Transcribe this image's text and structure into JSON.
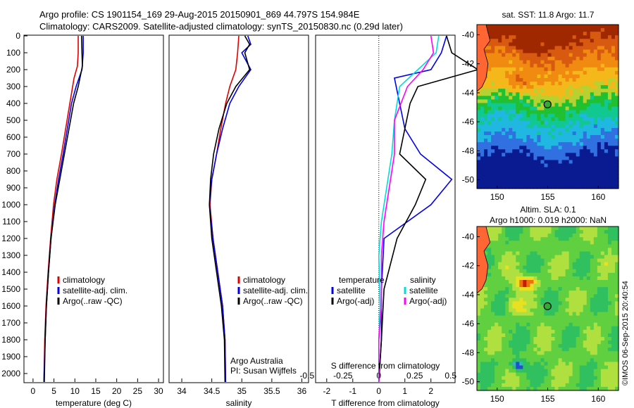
{
  "header": {
    "line1": "Argo profile: CS 1901154_169 29-Aug-2015 20150901_869 44.797S 154.984E",
    "line2": "Climatology: CARS2009. Satellite-adjusted climatology: synTS_20150830.nc (0.29d later)"
  },
  "credit": {
    "line1": "Argo Australia",
    "line2": "PI: Susan Wijffels"
  },
  "stamp": "©IMOS 06-Sep-2015 20:40:54",
  "colors": {
    "climatology": "#e00000",
    "satellite": "#0000ee",
    "argo": "#000000",
    "sal_sat": "#00dddd",
    "sal_argo": "#ff00ff"
  },
  "chart_data": [
    {
      "type": "line",
      "xlabel": "temperature (deg C)",
      "xlim": [
        -2,
        31
      ],
      "xticks": [
        0,
        5,
        10,
        15,
        20,
        25,
        30
      ],
      "ylim": [
        2050,
        0
      ],
      "yticks": [
        0,
        100,
        200,
        300,
        400,
        500,
        600,
        700,
        800,
        900,
        1000,
        1100,
        1200,
        1300,
        1400,
        1500,
        1600,
        1700,
        1800,
        1900,
        2000
      ],
      "legend": [
        "climatology",
        "satellite-adj. clim.",
        "Argo(..raw -QC)"
      ],
      "series": [
        {
          "name": "climatology",
          "points": [
            [
              10.8,
              0
            ],
            [
              10.8,
              100
            ],
            [
              10.6,
              180
            ],
            [
              9.8,
              250
            ],
            [
              8.8,
              400
            ],
            [
              7.8,
              550
            ],
            [
              6.8,
              700
            ],
            [
              5.7,
              850
            ],
            [
              4.9,
              1000
            ],
            [
              4.2,
              1200
            ],
            [
              3.6,
              1400
            ],
            [
              3.1,
              1600
            ],
            [
              2.8,
              1800
            ],
            [
              2.6,
              2050
            ]
          ]
        },
        {
          "name": "satellite-adj. clim.",
          "points": [
            [
              12.0,
              0
            ],
            [
              12.0,
              100
            ],
            [
              11.7,
              200
            ],
            [
              10.3,
              300
            ],
            [
              9.2,
              400
            ],
            [
              8.2,
              550
            ],
            [
              7.2,
              700
            ],
            [
              6.1,
              850
            ],
            [
              5.2,
              1000
            ],
            [
              4.3,
              1200
            ],
            [
              3.7,
              1400
            ],
            [
              3.2,
              1600
            ],
            [
              2.9,
              1800
            ],
            [
              2.6,
              2050
            ]
          ]
        },
        {
          "name": "Argo(..raw -QC)",
          "points": [
            [
              11.6,
              0
            ],
            [
              11.7,
              100
            ],
            [
              11.8,
              180
            ],
            [
              10.8,
              300
            ],
            [
              9.7,
              400
            ],
            [
              8.6,
              550
            ],
            [
              7.5,
              700
            ],
            [
              6.4,
              850
            ],
            [
              5.3,
              1000
            ],
            [
              4.3,
              1200
            ],
            [
              3.7,
              1400
            ],
            [
              3.2,
              1600
            ],
            [
              2.9,
              1800
            ],
            [
              2.7,
              2050
            ]
          ]
        }
      ]
    },
    {
      "type": "line",
      "xlabel": "salinity",
      "xlim": [
        33.8,
        36.1
      ],
      "xticks": [
        34,
        34.5,
        35,
        35.5,
        36
      ],
      "ylim": [
        2050,
        0
      ],
      "legend": [
        "climatology",
        "satellite-adj. clim.",
        "Argo(..raw -QC)"
      ],
      "series": [
        {
          "name": "climatology",
          "points": [
            [
              34.95,
              0
            ],
            [
              34.93,
              100
            ],
            [
              34.9,
              200
            ],
            [
              34.8,
              300
            ],
            [
              34.73,
              400
            ],
            [
              34.65,
              550
            ],
            [
              34.58,
              700
            ],
            [
              34.5,
              850
            ],
            [
              34.47,
              1000
            ],
            [
              34.52,
              1200
            ],
            [
              34.6,
              1400
            ],
            [
              34.68,
              1600
            ],
            [
              34.72,
              1800
            ],
            [
              34.73,
              2050
            ]
          ]
        },
        {
          "name": "satellite-adj. clim.",
          "points": [
            [
              35.1,
              0
            ],
            [
              35.15,
              50
            ],
            [
              35.0,
              100
            ],
            [
              35.15,
              200
            ],
            [
              34.95,
              300
            ],
            [
              34.8,
              400
            ],
            [
              34.68,
              550
            ],
            [
              34.58,
              700
            ],
            [
              34.5,
              850
            ],
            [
              34.46,
              1000
            ],
            [
              34.52,
              1200
            ],
            [
              34.6,
              1400
            ],
            [
              34.68,
              1600
            ],
            [
              34.72,
              1800
            ],
            [
              34.73,
              2050
            ]
          ]
        },
        {
          "name": "Argo(..raw -QC)",
          "points": [
            [
              35.05,
              0
            ],
            [
              35.13,
              50
            ],
            [
              35.05,
              100
            ],
            [
              35.13,
              200
            ],
            [
              34.9,
              300
            ],
            [
              34.75,
              400
            ],
            [
              34.62,
              550
            ],
            [
              34.53,
              700
            ],
            [
              34.48,
              850
            ],
            [
              34.46,
              1000
            ],
            [
              34.5,
              1200
            ],
            [
              34.58,
              1400
            ],
            [
              34.66,
              1600
            ],
            [
              34.71,
              1800
            ],
            [
              34.72,
              2050
            ]
          ]
        }
      ]
    },
    {
      "type": "line",
      "xlabel": "T difference from climatology",
      "xlabel2": "S difference from climatology",
      "xlim": [
        -2.4,
        2.9
      ],
      "xticks": [
        -2,
        -1,
        0,
        1,
        2
      ],
      "xticks_S": [
        -0.5,
        -0.25,
        0,
        0.25,
        0.5
      ],
      "legend_temperature_title": "temperature",
      "legend_salinity_title": "salinity",
      "legend": [
        "satellite",
        "Argo(-adj)",
        "satellite",
        "Argo(-adj)"
      ],
      "series": [
        {
          "name": "satellite",
          "group": "temperature",
          "points": [
            [
              2.6,
              0
            ],
            [
              2.4,
              100
            ],
            [
              2.0,
              200
            ],
            [
              0.6,
              250
            ],
            [
              0.8,
              400
            ],
            [
              1.0,
              550
            ],
            [
              1.6,
              700
            ],
            [
              2.8,
              850
            ],
            [
              2.0,
              1000
            ],
            [
              0.2,
              1200
            ],
            [
              0.1,
              1500
            ],
            [
              0.1,
              1800
            ],
            [
              0.0,
              2050
            ]
          ]
        },
        {
          "name": "Argo(-adj)",
          "group": "temperature",
          "points": [
            [
              2.6,
              0
            ],
            [
              2.8,
              100
            ],
            [
              3.8,
              200
            ],
            [
              1.5,
              300
            ],
            [
              1.2,
              400
            ],
            [
              1.0,
              550
            ],
            [
              0.8,
              700
            ],
            [
              1.8,
              850
            ],
            [
              1.4,
              1000
            ],
            [
              0.7,
              1200
            ],
            [
              0.2,
              1500
            ],
            [
              0.1,
              1800
            ],
            [
              0.0,
              2050
            ]
          ]
        },
        {
          "name": "satellite",
          "group": "salinity",
          "points": [
            [
              2.3,
              0
            ],
            [
              2.2,
              100
            ],
            [
              1.5,
              200
            ],
            [
              0.8,
              300
            ],
            [
              0.6,
              500
            ],
            [
              0.5,
              700
            ],
            [
              0.3,
              900
            ],
            [
              0.1,
              1100
            ],
            [
              0.0,
              1300
            ],
            [
              0.05,
              1600
            ],
            [
              0.0,
              1800
            ],
            [
              0.0,
              2050
            ]
          ]
        },
        {
          "name": "Argo(-adj)",
          "group": "salinity",
          "points": [
            [
              2.0,
              0
            ],
            [
              2.1,
              100
            ],
            [
              1.7,
              200
            ],
            [
              1.1,
              300
            ],
            [
              0.6,
              500
            ],
            [
              0.6,
              700
            ],
            [
              0.4,
              900
            ],
            [
              0.2,
              1100
            ],
            [
              0.1,
              1300
            ],
            [
              0.1,
              1600
            ],
            [
              0.0,
              1800
            ],
            [
              0.0,
              2050
            ]
          ]
        }
      ]
    },
    {
      "type": "heatmap",
      "title": "sat. SST: 11.8 Argo: 11.7",
      "xticks": [
        150,
        155,
        160
      ],
      "yticks": [
        -40,
        -42,
        -44,
        -46,
        -48,
        -50
      ],
      "xlim": [
        148,
        162
      ],
      "ylim": [
        -50.6,
        -39.3
      ],
      "argo_marker": [
        154.984,
        -44.797
      ]
    },
    {
      "type": "heatmap",
      "title": "Altim. SLA: 0.1",
      "subtitle": "Argo h1000: 0.019 h2000: NaN",
      "xticks": [
        150,
        155,
        160
      ],
      "yticks": [
        -40,
        -42,
        -44,
        -46,
        -48,
        -50
      ],
      "xlim": [
        148,
        162
      ],
      "ylim": [
        -50.6,
        -39.3
      ],
      "argo_marker": [
        154.984,
        -44.797
      ]
    }
  ]
}
